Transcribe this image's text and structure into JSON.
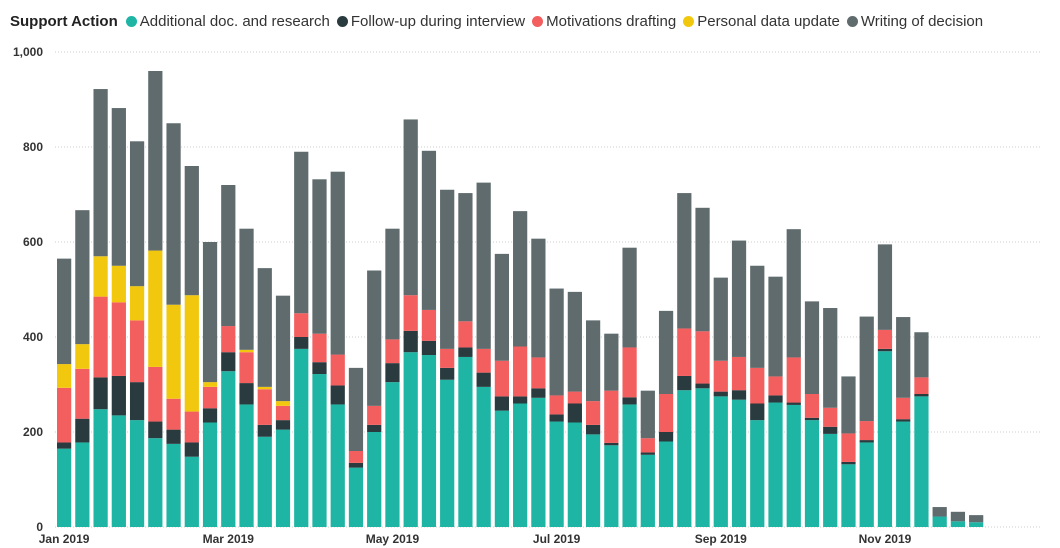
{
  "chart_data": {
    "type": "bar",
    "stacked": true,
    "legend_title": "Support Action",
    "legend_position": "top-left",
    "grid": true,
    "ylim": [
      0,
      1000
    ],
    "y_ticks": [
      "0",
      "200",
      "400",
      "600",
      "800",
      "1,000"
    ],
    "y_tick_values": [
      0,
      200,
      400,
      600,
      800,
      1000
    ],
    "x_tick_labels": [
      {
        "index": 0,
        "label": "Jan 2019"
      },
      {
        "index": 9,
        "label": "Mar 2019"
      },
      {
        "index": 18,
        "label": "May 2019"
      },
      {
        "index": 27,
        "label": "Jul 2019"
      },
      {
        "index": 36,
        "label": "Sep 2019"
      },
      {
        "index": 45,
        "label": "Nov 2019"
      }
    ],
    "bar_count": 54,
    "series": [
      {
        "name": "Additional doc. and research",
        "color": "#1fb5a5",
        "values": [
          165,
          178,
          248,
          235,
          225,
          187,
          175,
          148,
          220,
          328,
          258,
          190,
          205,
          375,
          322,
          258,
          125,
          200,
          305,
          368,
          362,
          310,
          358,
          295,
          245,
          260,
          272,
          222,
          220,
          195,
          172,
          258,
          152,
          180,
          288,
          292,
          275,
          268,
          225,
          262,
          257,
          225,
          196,
          132,
          178,
          370,
          222,
          275,
          22,
          12,
          10,
          0,
          0,
          0
        ]
      },
      {
        "name": "Follow-up during interview",
        "color": "#2a3b3f",
        "values": [
          13,
          50,
          67,
          83,
          80,
          35,
          30,
          30,
          30,
          40,
          45,
          25,
          20,
          25,
          25,
          40,
          10,
          15,
          40,
          45,
          30,
          25,
          20,
          30,
          30,
          15,
          20,
          15,
          40,
          20,
          5,
          15,
          5,
          20,
          30,
          10,
          10,
          20,
          35,
          15,
          5,
          5,
          15,
          5,
          5,
          5,
          5,
          5,
          0,
          0,
          0,
          0,
          0,
          0
        ]
      },
      {
        "name": "Motivations drafting",
        "color": "#f35e5f",
        "values": [
          115,
          105,
          170,
          155,
          130,
          115,
          65,
          65,
          45,
          55,
          65,
          75,
          30,
          50,
          60,
          65,
          25,
          40,
          50,
          75,
          65,
          40,
          55,
          50,
          75,
          105,
          65,
          40,
          25,
          50,
          110,
          105,
          30,
          80,
          100,
          110,
          65,
          70,
          75,
          40,
          95,
          50,
          40,
          60,
          40,
          40,
          45,
          35,
          0,
          0,
          0,
          0,
          0,
          0
        ]
      },
      {
        "name": "Personal data update",
        "color": "#f2c80f",
        "values": [
          50,
          52,
          85,
          77,
          72,
          245,
          198,
          245,
          10,
          0,
          5,
          5,
          10,
          0,
          0,
          0,
          0,
          0,
          0,
          0,
          0,
          0,
          0,
          0,
          0,
          0,
          0,
          0,
          0,
          0,
          0,
          0,
          0,
          0,
          0,
          0,
          0,
          0,
          0,
          0,
          0,
          0,
          0,
          0,
          0,
          0,
          0,
          0,
          0,
          0,
          0,
          0,
          0,
          0
        ]
      },
      {
        "name": "Writing of decision",
        "color": "#5f6b6d",
        "values": [
          222,
          282,
          352,
          332,
          305,
          378,
          382,
          272,
          295,
          297,
          255,
          250,
          222,
          340,
          325,
          385,
          175,
          285,
          233,
          370,
          335,
          335,
          270,
          350,
          225,
          285,
          250,
          225,
          210,
          170,
          120,
          210,
          100,
          175,
          285,
          260,
          175,
          245,
          215,
          210,
          270,
          195,
          210,
          120,
          220,
          180,
          170,
          95,
          20,
          20,
          15,
          0,
          0,
          0
        ]
      }
    ]
  }
}
